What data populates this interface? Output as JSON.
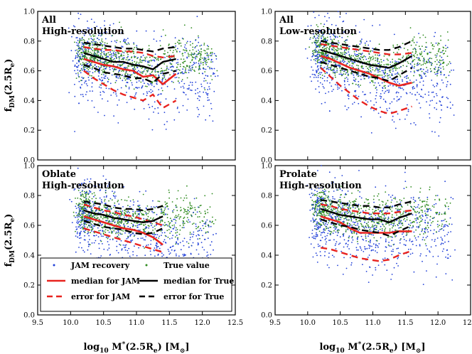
{
  "chart_data": [
    {
      "type": "scatter",
      "panel": "top-left",
      "title": "All",
      "subtitle": "High-resolution",
      "xlabel": "log10 M*(2.5Re) [M⊙]",
      "ylabel": "fDM(2.5Re)",
      "xlim": [
        9.5,
        12.5
      ],
      "ylim": [
        0.0,
        1.0
      ],
      "x": [
        10.2,
        10.35,
        10.5,
        10.65,
        10.8,
        10.95,
        11.1,
        11.25,
        11.4,
        11.6
      ],
      "series": [
        {
          "name": "median for JAM",
          "style": "red-solid",
          "values": [
            0.68,
            0.66,
            0.64,
            0.63,
            0.61,
            0.6,
            0.56,
            0.57,
            0.51,
            0.58
          ]
        },
        {
          "name": "error for JAM",
          "style": "red-dashed-upper",
          "values": [
            0.76,
            0.75,
            0.74,
            0.74,
            0.73,
            0.73,
            0.72,
            0.7,
            0.69,
            0.7
          ]
        },
        {
          "name": "error for JAM",
          "style": "red-dashed-lower",
          "values": [
            0.6,
            0.55,
            0.51,
            0.47,
            0.44,
            0.42,
            0.4,
            0.44,
            0.35,
            0.4
          ]
        },
        {
          "name": "median for True",
          "style": "black-solid",
          "values": [
            0.72,
            0.7,
            0.68,
            0.66,
            0.66,
            0.64,
            0.63,
            0.61,
            0.66,
            0.68
          ]
        },
        {
          "name": "error for True",
          "style": "black-dashed-upper",
          "values": [
            0.79,
            0.78,
            0.77,
            0.76,
            0.75,
            0.75,
            0.74,
            0.73,
            0.75,
            0.76
          ]
        },
        {
          "name": "error for True",
          "style": "black-dashed-lower",
          "values": [
            0.64,
            0.62,
            0.59,
            0.58,
            0.57,
            0.55,
            0.55,
            0.52,
            0.58,
            0.6
          ]
        }
      ]
    },
    {
      "type": "scatter",
      "panel": "top-right",
      "title": "All",
      "subtitle": "Low-resolution",
      "xlabel": "log10 M*(2.5Re) [M⊙]",
      "xlim": [
        9.5,
        12.5
      ],
      "ylim": [
        0.0,
        1.0
      ],
      "x": [
        10.2,
        10.35,
        10.5,
        10.65,
        10.8,
        10.95,
        11.1,
        11.25,
        11.4,
        11.6
      ],
      "series": [
        {
          "name": "median for JAM",
          "style": "red-solid",
          "values": [
            0.7,
            0.68,
            0.65,
            0.62,
            0.6,
            0.58,
            0.55,
            0.52,
            0.5,
            0.52
          ]
        },
        {
          "name": "error for JAM",
          "style": "red-dashed-upper",
          "values": [
            0.78,
            0.77,
            0.76,
            0.75,
            0.74,
            0.73,
            0.72,
            0.71,
            0.71,
            0.72
          ]
        },
        {
          "name": "error for JAM",
          "style": "red-dashed-lower",
          "values": [
            0.62,
            0.56,
            0.5,
            0.45,
            0.4,
            0.36,
            0.33,
            0.31,
            0.33,
            0.36
          ]
        },
        {
          "name": "median for True",
          "style": "black-solid",
          "values": [
            0.74,
            0.72,
            0.7,
            0.68,
            0.66,
            0.64,
            0.63,
            0.62,
            0.65,
            0.7
          ]
        },
        {
          "name": "error for True",
          "style": "black-dashed-upper",
          "values": [
            0.8,
            0.79,
            0.78,
            0.77,
            0.76,
            0.75,
            0.74,
            0.74,
            0.76,
            0.8
          ]
        },
        {
          "name": "error for True",
          "style": "black-dashed-lower",
          "values": [
            0.66,
            0.64,
            0.62,
            0.6,
            0.58,
            0.56,
            0.55,
            0.53,
            0.57,
            0.62
          ]
        }
      ]
    },
    {
      "type": "scatter",
      "panel": "bottom-left",
      "title": "Oblate",
      "subtitle": "High-resolution",
      "xlabel": "log10 M*(2.5Re) [M⊙]",
      "ylabel": "fDM(2.5Re)",
      "xlim": [
        9.5,
        12.5
      ],
      "ylim": [
        0.0,
        1.0
      ],
      "x": [
        10.2,
        10.35,
        10.5,
        10.65,
        10.8,
        10.95,
        11.1,
        11.25,
        11.4
      ],
      "series": [
        {
          "name": "median for JAM",
          "style": "red-solid",
          "values": [
            0.66,
            0.64,
            0.62,
            0.6,
            0.58,
            0.57,
            0.55,
            0.52,
            0.47
          ]
        },
        {
          "name": "error for JAM",
          "style": "red-dashed-upper",
          "values": [
            0.74,
            0.72,
            0.7,
            0.69,
            0.67,
            0.66,
            0.64,
            0.62,
            0.6
          ]
        },
        {
          "name": "error for JAM",
          "style": "red-dashed-lower",
          "values": [
            0.58,
            0.56,
            0.54,
            0.52,
            0.5,
            0.48,
            0.46,
            0.44,
            0.42
          ]
        },
        {
          "name": "median for True",
          "style": "black-solid",
          "values": [
            0.7,
            0.68,
            0.67,
            0.65,
            0.64,
            0.63,
            0.62,
            0.63,
            0.66
          ]
        },
        {
          "name": "error for True",
          "style": "black-dashed-upper",
          "values": [
            0.76,
            0.75,
            0.74,
            0.72,
            0.71,
            0.71,
            0.7,
            0.71,
            0.73
          ]
        },
        {
          "name": "error for True",
          "style": "black-dashed-lower",
          "values": [
            0.63,
            0.61,
            0.59,
            0.58,
            0.57,
            0.55,
            0.54,
            0.55,
            0.58
          ]
        }
      ]
    },
    {
      "type": "scatter",
      "panel": "bottom-right",
      "title": "Prolate",
      "subtitle": "High-resolution",
      "xlabel": "log10 M*(2.5Re) [M⊙]",
      "xlim": [
        9.5,
        12.5
      ],
      "ylim": [
        0.0,
        1.0
      ],
      "x": [
        10.2,
        10.35,
        10.5,
        10.65,
        10.8,
        10.95,
        11.1,
        11.25,
        11.4,
        11.6
      ],
      "series": [
        {
          "name": "median for JAM",
          "style": "red-solid",
          "values": [
            0.66,
            0.64,
            0.62,
            0.58,
            0.55,
            0.55,
            0.55,
            0.55,
            0.56,
            0.56
          ]
        },
        {
          "name": "error for JAM",
          "style": "red-dashed-upper",
          "values": [
            0.74,
            0.73,
            0.71,
            0.7,
            0.69,
            0.68,
            0.68,
            0.68,
            0.69,
            0.7
          ]
        },
        {
          "name": "error for JAM",
          "style": "red-dashed-lower",
          "values": [
            0.45,
            0.44,
            0.42,
            0.4,
            0.38,
            0.37,
            0.36,
            0.37,
            0.4,
            0.43
          ]
        },
        {
          "name": "median for True",
          "style": "black-solid",
          "values": [
            0.71,
            0.69,
            0.67,
            0.66,
            0.65,
            0.64,
            0.64,
            0.62,
            0.65,
            0.68
          ]
        },
        {
          "name": "error for True",
          "style": "black-dashed-upper",
          "values": [
            0.77,
            0.76,
            0.75,
            0.74,
            0.73,
            0.73,
            0.72,
            0.72,
            0.74,
            0.76
          ]
        },
        {
          "name": "error for True",
          "style": "black-dashed-lower",
          "values": [
            0.64,
            0.62,
            0.6,
            0.59,
            0.57,
            0.56,
            0.55,
            0.53,
            0.56,
            0.6
          ]
        }
      ]
    }
  ],
  "axes": {
    "xticks": [
      9.5,
      10.0,
      10.5,
      11.0,
      11.5,
      12.0,
      12.5
    ],
    "yticks": [
      0.0,
      0.2,
      0.4,
      0.6,
      0.8,
      1.0
    ],
    "xlabel": {
      "base": "log",
      "sub1": "10",
      "mid": " M",
      "sup": "*",
      "mid2": "(2.5R",
      "sub2": "e",
      "end": ") [M",
      "sub3": "⊙",
      "close": "]"
    },
    "ylabel": {
      "base": "f",
      "sub1": "DM",
      "mid": "(2.5R",
      "sub2": "e",
      "end": ")"
    }
  },
  "legend": {
    "location": "lower-left of bottom-left panel",
    "entries": [
      {
        "label": "JAM recovery",
        "marker": "blue-dot"
      },
      {
        "label": "True value",
        "marker": "green-dot"
      },
      {
        "label": "median for JAM",
        "marker": "red-solid"
      },
      {
        "label": "median for True",
        "marker": "black-solid"
      },
      {
        "label": "error for JAM",
        "marker": "red-dashed"
      },
      {
        "label": "error for True",
        "marker": "black-dashed"
      }
    ]
  },
  "colors": {
    "jam_scatter": "#1f3fd8",
    "true_scatter": "#2e8b1e",
    "jam_lines": "#e8231f",
    "true_lines": "#000000"
  }
}
